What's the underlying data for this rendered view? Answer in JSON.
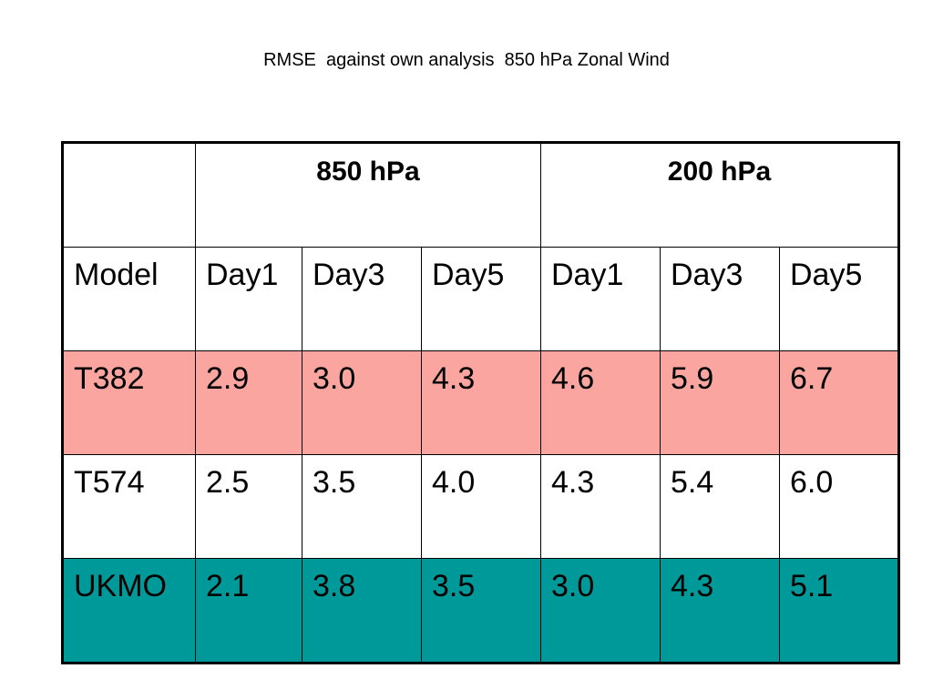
{
  "title": "RMSE  against own analysis  850 hPa Zonal Wind",
  "table": {
    "group_headers": [
      "850 hPa",
      "200 hPa"
    ],
    "columns": [
      "Model",
      "Day1",
      "Day3",
      "Day5",
      "Day1",
      "Day3",
      "Day5"
    ],
    "rows": [
      {
        "model": "T382",
        "background": "#faa59f",
        "values": [
          "2.9",
          "3.0",
          "4.3",
          "4.6",
          "5.9",
          "6.7"
        ]
      },
      {
        "model": "T574",
        "background": "#ffffff",
        "values": [
          "2.5",
          "3.5",
          "4.0",
          "4.3",
          "5.4",
          "6.0"
        ]
      },
      {
        "model": "UKMO",
        "background": "#009999",
        "values": [
          "2.1",
          "3.8",
          "3.5",
          "3.0",
          "4.3",
          "5.1"
        ]
      }
    ]
  }
}
